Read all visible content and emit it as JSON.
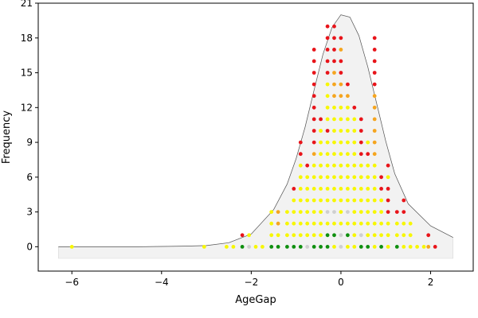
{
  "chart_data": {
    "type": "scatter",
    "title": "",
    "xlabel": "AgeGap",
    "ylabel": "Frequency",
    "xlim": [
      -6.75,
      2.95
    ],
    "ylim": [
      -2.1,
      21
    ],
    "xticks": [
      -6,
      -4,
      -2,
      0,
      2
    ],
    "yticks": [
      0,
      3,
      6,
      9,
      12,
      15,
      18,
      21
    ],
    "grid": false,
    "legend": "none",
    "density_curve": {
      "description_values": "approximate kernel-density outline scaled to frequency",
      "x": [
        -6.3,
        -5.5,
        -4.5,
        -3.5,
        -3.0,
        -2.5,
        -2.0,
        -1.5,
        -1.2,
        -1.0,
        -0.8,
        -0.6,
        -0.4,
        -0.2,
        0.0,
        0.2,
        0.4,
        0.6,
        0.8,
        1.0,
        1.2,
        1.5,
        2.0,
        2.5
      ],
      "y": [
        0,
        0,
        0,
        0.05,
        0.1,
        0.35,
        1.1,
        3.2,
        5.4,
        7.6,
        10.3,
        13.5,
        16.6,
        18.9,
        20.0,
        19.8,
        18.2,
        15.5,
        12.3,
        9.1,
        6.3,
        3.7,
        1.8,
        0.8
      ]
    },
    "columns": [
      {
        "x": -6.0,
        "colors": [
          "yellow"
        ]
      },
      {
        "x": -3.05,
        "colors": [
          "yellow"
        ]
      },
      {
        "x": -2.55,
        "colors": [
          "yellow"
        ]
      },
      {
        "x": -2.4,
        "colors": [
          "yellow"
        ]
      },
      {
        "x": -2.2,
        "colors": [
          "green",
          "red"
        ]
      },
      {
        "x": -2.05,
        "colors": [
          "gray",
          "yellow"
        ]
      },
      {
        "x": -1.9,
        "colors": [
          "yellow"
        ]
      },
      {
        "x": -1.75,
        "colors": [
          "yellow"
        ]
      },
      {
        "x": -1.55,
        "colors": [
          "green",
          "yellow",
          "yellow",
          "yellow"
        ]
      },
      {
        "x": -1.4,
        "colors": [
          "green",
          "yellow",
          "orange",
          "orange"
        ]
      },
      {
        "x": -1.2,
        "colors": [
          "green",
          "yellow",
          "yellow",
          "yellow"
        ]
      },
      {
        "x": -1.05,
        "colors": [
          "green",
          "yellow",
          "yellow",
          "yellow",
          "yellow",
          "red"
        ]
      },
      {
        "x": -0.9,
        "colors": [
          "green",
          "yellow",
          "yellow",
          "yellow",
          "yellow",
          "yellow",
          "yellow",
          "yellow",
          "red",
          "red"
        ]
      },
      {
        "x": -0.75,
        "colors": [
          "gray",
          "yellow",
          "yellow",
          "yellow",
          "yellow",
          "yellow",
          "yellow",
          "red"
        ]
      },
      {
        "x": -0.6,
        "colors": [
          "green",
          "yellow",
          "yellow",
          "yellow",
          "yellow",
          "yellow",
          "yellow",
          "yellow",
          "orange",
          "red",
          "red",
          "red",
          "red",
          "red",
          "red",
          "red",
          "red",
          "red"
        ]
      },
      {
        "x": -0.45,
        "colors": [
          "green",
          "yellow",
          "yellow",
          "yellow",
          "yellow",
          "yellow",
          "yellow",
          "yellow",
          "yellow",
          "yellow",
          "yellow",
          "red"
        ]
      },
      {
        "x": -0.3,
        "colors": [
          "green",
          "green",
          "yellow",
          "gray",
          "yellow",
          "yellow",
          "yellow",
          "yellow",
          "yellow",
          "yellow",
          "red",
          "yellow",
          "yellow",
          "yellow",
          "yellow",
          "red",
          "red",
          "red",
          "red",
          "red"
        ]
      },
      {
        "x": -0.15,
        "colors": [
          "yellow",
          "green",
          "yellow",
          "gray",
          "yellow",
          "yellow",
          "yellow",
          "yellow",
          "yellow",
          "yellow",
          "yellow",
          "yellow",
          "yellow",
          "orange",
          "orange",
          "orange",
          "red",
          "red",
          "red",
          "red"
        ]
      },
      {
        "x": 0.0,
        "colors": [
          "gray",
          "gray",
          "yellow",
          "yellow",
          "yellow",
          "yellow",
          "yellow",
          "yellow",
          "yellow",
          "yellow",
          "yellow",
          "yellow",
          "yellow",
          "orange",
          "orange",
          "red",
          "red",
          "orange",
          "red"
        ]
      },
      {
        "x": 0.15,
        "colors": [
          "yellow",
          "green",
          "yellow",
          "gray",
          "yellow",
          "yellow",
          "yellow",
          "yellow",
          "yellow",
          "yellow",
          "yellow",
          "yellow",
          "yellow",
          "orange",
          "red"
        ]
      },
      {
        "x": 0.3,
        "colors": [
          "yellow",
          "yellow",
          "yellow",
          "yellow",
          "yellow",
          "yellow",
          "yellow",
          "yellow",
          "yellow",
          "yellow",
          "yellow",
          "yellow",
          "red"
        ]
      },
      {
        "x": 0.45,
        "colors": [
          "green",
          "gray",
          "yellow",
          "yellow",
          "yellow",
          "yellow",
          "yellow",
          "yellow",
          "red",
          "red",
          "red",
          "red"
        ]
      },
      {
        "x": 0.6,
        "colors": [
          "green",
          "yellow",
          "yellow",
          "yellow",
          "yellow",
          "yellow",
          "yellow",
          "yellow",
          "red",
          "yellow"
        ]
      },
      {
        "x": 0.75,
        "colors": [
          "yellow",
          "yellow",
          "yellow",
          "yellow",
          "yellow",
          "yellow",
          "yellow",
          "yellow",
          "orange",
          "orange",
          "orange",
          "orange",
          "orange",
          "orange",
          "red",
          "red",
          "red",
          "red",
          "red"
        ]
      },
      {
        "x": 0.9,
        "colors": [
          "green",
          "yellow",
          "yellow",
          "yellow",
          "yellow",
          "red",
          "red"
        ]
      },
      {
        "x": 1.05,
        "colors": [
          "yellow",
          "yellow",
          "yellow",
          "red",
          "red",
          "red",
          "yellow",
          "red"
        ]
      },
      {
        "x": 1.25,
        "colors": [
          "green",
          "yellow",
          "yellow",
          "red"
        ]
      },
      {
        "x": 1.4,
        "colors": [
          "yellow",
          "yellow",
          "yellow",
          "red",
          "red"
        ]
      },
      {
        "x": 1.55,
        "colors": [
          "yellow",
          "yellow",
          "yellow"
        ]
      },
      {
        "x": 1.7,
        "colors": [
          "yellow"
        ]
      },
      {
        "x": 1.85,
        "colors": [
          "yellow"
        ]
      },
      {
        "x": 1.95,
        "colors": [
          "orange",
          "red"
        ]
      },
      {
        "x": 2.1,
        "colors": [
          "red"
        ]
      }
    ],
    "colors": {
      "red": "#e8141a",
      "orange": "#f5a51f",
      "yellow": "#f7f700",
      "gray": "#cfcfcf",
      "green": "#0f8f0f",
      "curve": "#555555",
      "curve_fill": "#f2f2f2"
    }
  }
}
